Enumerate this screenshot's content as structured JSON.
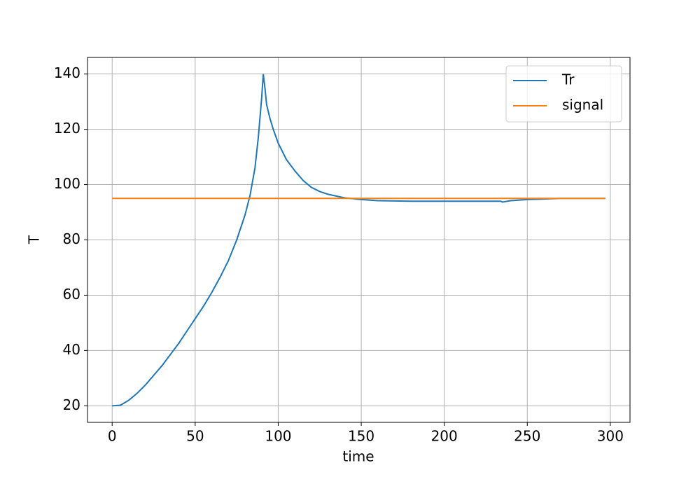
{
  "chart_data": {
    "type": "line",
    "xlabel": "time",
    "ylabel": "T",
    "series": [
      {
        "name": "Tr",
        "color": "#1f77b4",
        "x": [
          0,
          5,
          10,
          15,
          20,
          25,
          30,
          35,
          40,
          45,
          50,
          55,
          60,
          65,
          70,
          75,
          80,
          83,
          86,
          88,
          90,
          91,
          92,
          93,
          95,
          97,
          100,
          105,
          110,
          115,
          120,
          125,
          130,
          140,
          150,
          160,
          180,
          200,
          220,
          234,
          235,
          240,
          250,
          260,
          270,
          280,
          297
        ],
        "values": [
          20,
          20.2,
          22,
          24.5,
          27.5,
          31,
          34.5,
          38.5,
          42.5,
          47,
          51.5,
          56,
          61,
          66.5,
          72.5,
          80,
          89,
          96,
          106,
          117,
          131,
          140,
          135,
          129,
          124,
          120,
          115,
          109,
          105,
          101.5,
          99,
          97.5,
          96.5,
          95.2,
          94.6,
          94.2,
          94,
          94,
          94,
          94,
          93.7,
          94.2,
          94.6,
          94.8,
          95,
          95,
          95
        ]
      },
      {
        "name": "signal",
        "color": "#ff7f0e",
        "x": [
          0,
          297
        ],
        "values": [
          95,
          95
        ]
      }
    ],
    "xlim": [
      -14.85,
      311.85
    ],
    "xticks": [
      0,
      50,
      100,
      150,
      200,
      250,
      300
    ],
    "ylim": [
      14,
      146
    ],
    "yticks": [
      20,
      40,
      60,
      80,
      100,
      120,
      140
    ],
    "grid": true,
    "legend": "upper right"
  }
}
